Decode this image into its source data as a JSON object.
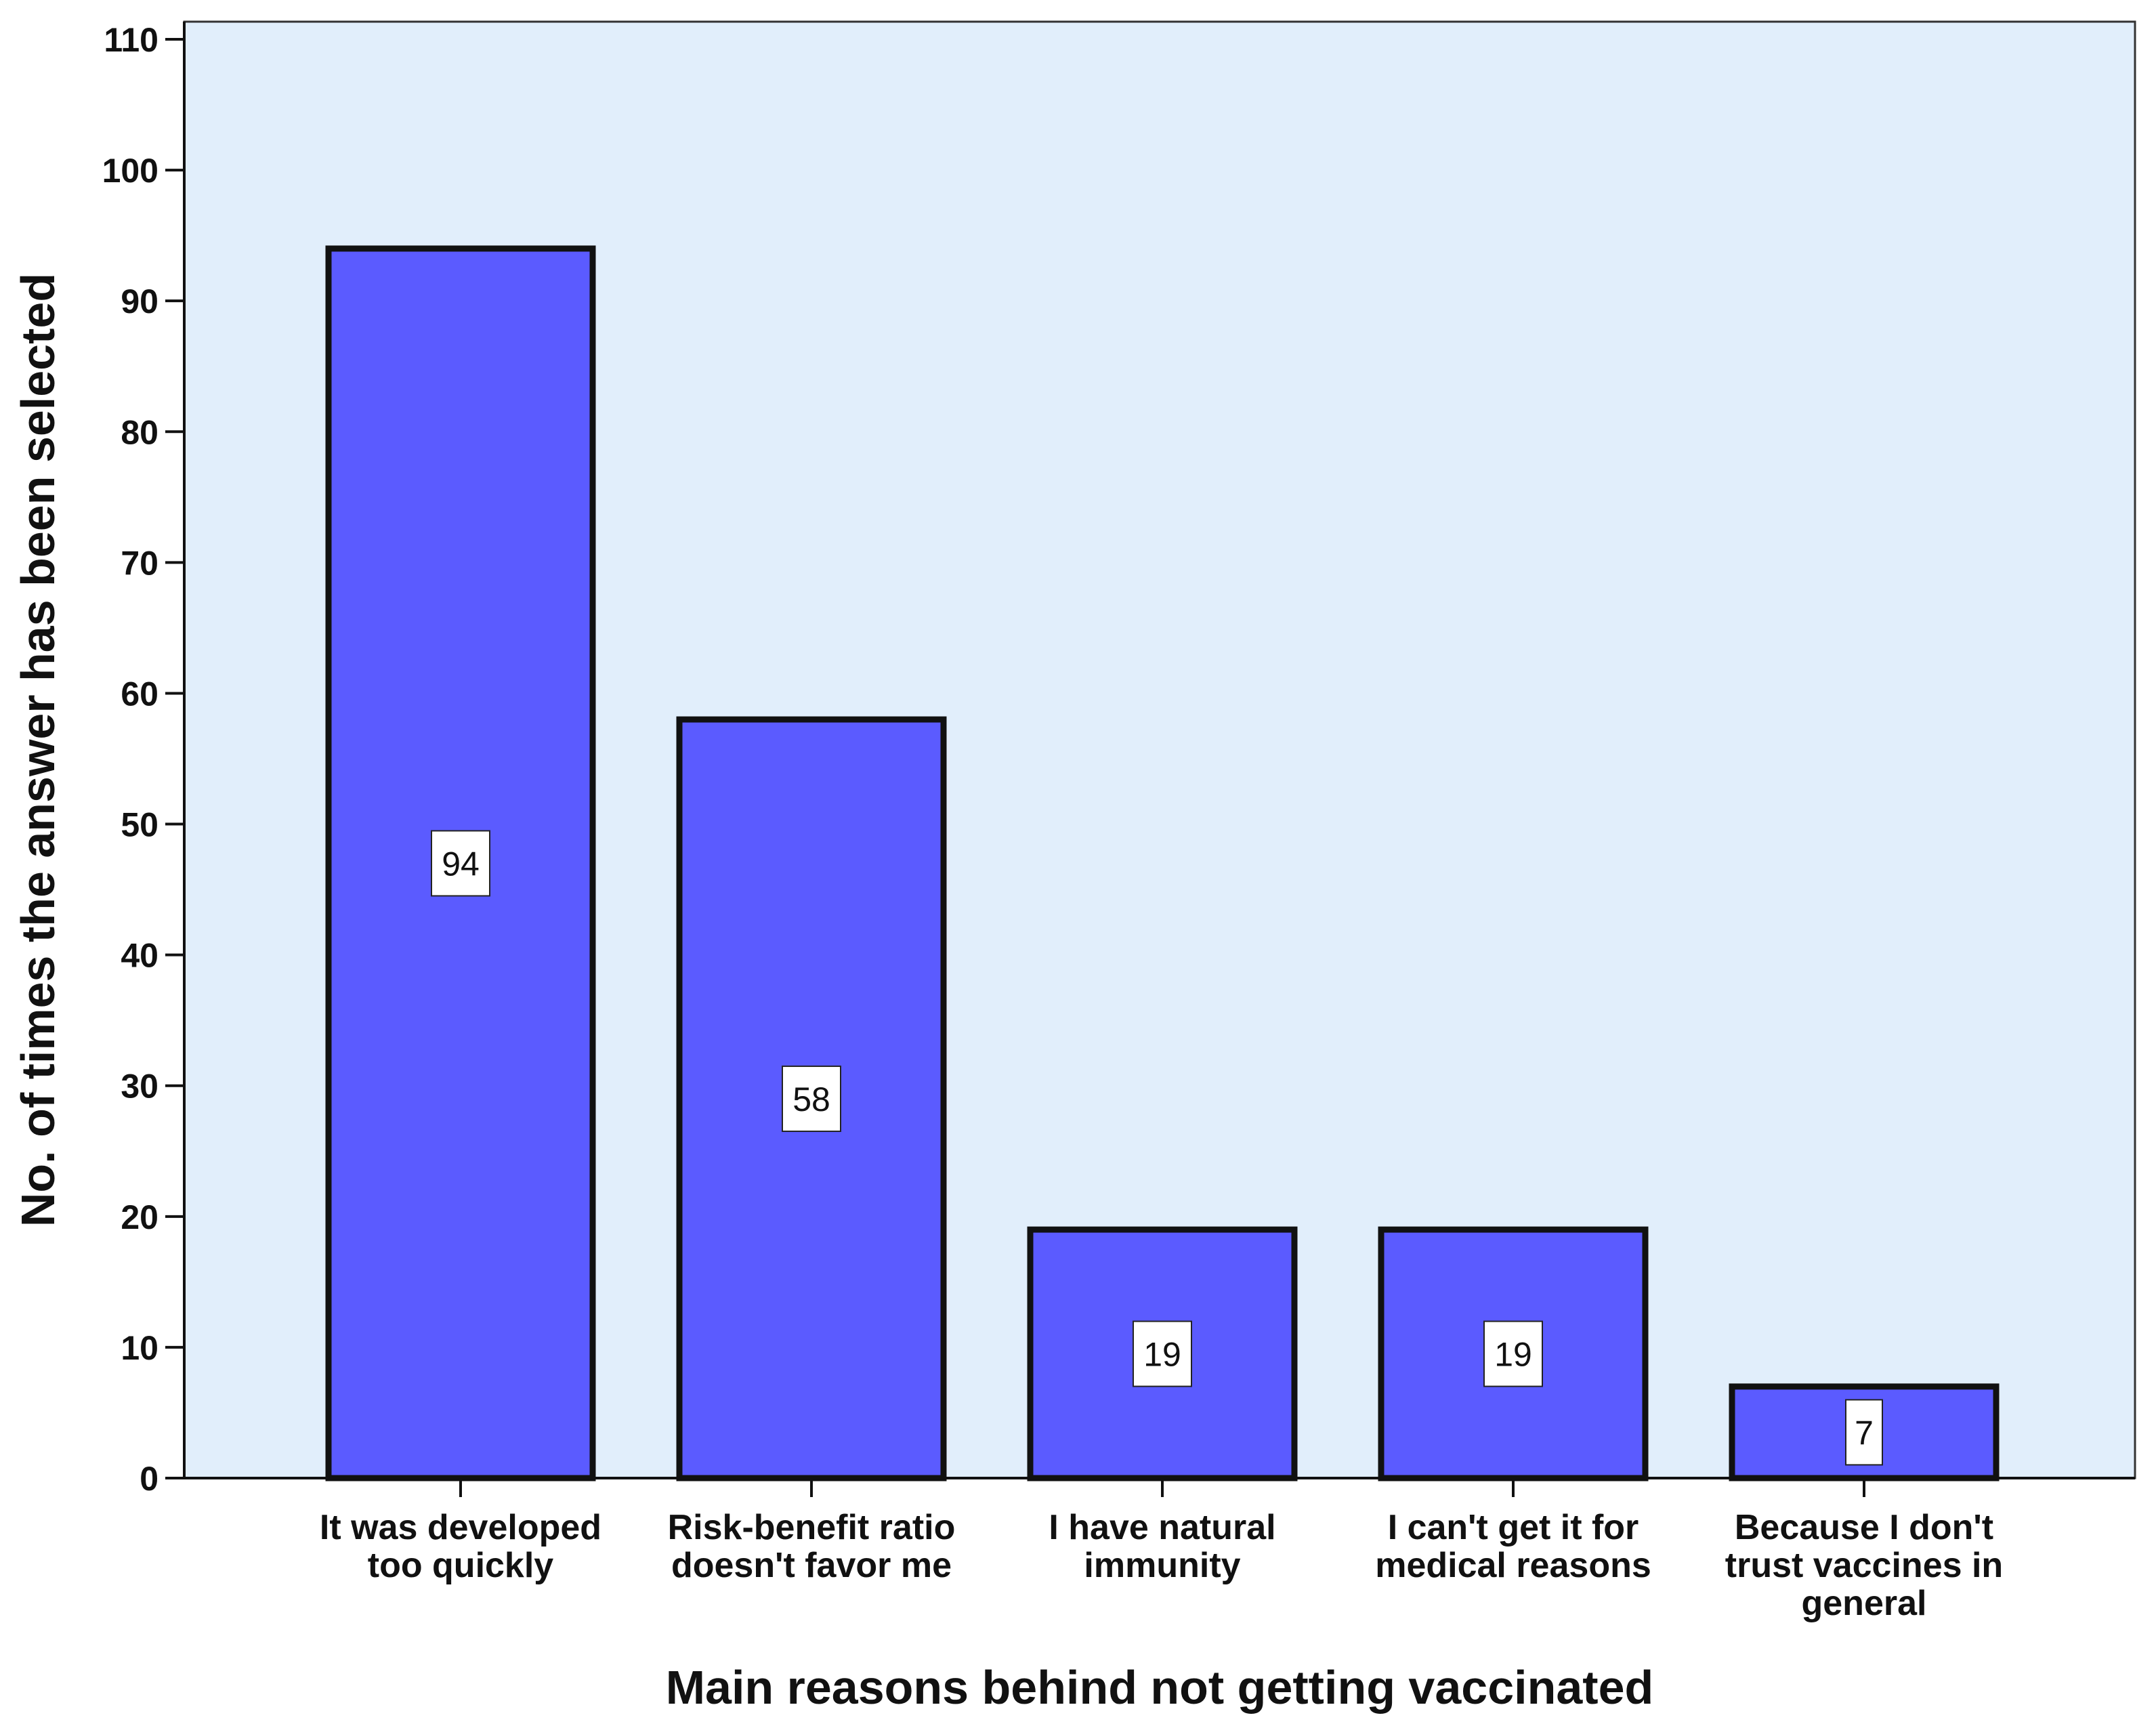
{
  "chart_data": {
    "type": "bar",
    "title": "",
    "xlabel": "Main reasons behind not getting vaccinated",
    "ylabel": "No. of times the answer has been selected",
    "categories": [
      "It was developed too quickly",
      "Risk-benefit ratio doesn't favor me",
      "I have natural immunity",
      "I can't get it for medical reasons",
      "Because I don't trust vaccines in general"
    ],
    "category_label_lines": [
      [
        "It was developed",
        "too quickly"
      ],
      [
        "Risk-benefit ratio",
        "doesn't favor me"
      ],
      [
        "I have natural",
        "immunity"
      ],
      [
        "I can't get it for",
        "medical reasons"
      ],
      [
        "Because I don't",
        "trust vaccines in",
        "general"
      ]
    ],
    "values": [
      94,
      58,
      19,
      19,
      7
    ],
    "data_labels": [
      "94",
      "58",
      "19",
      "19",
      "7"
    ],
    "ylim": [
      0,
      110
    ],
    "yticks": [
      0,
      10,
      20,
      30,
      40,
      50,
      60,
      70,
      80,
      90,
      100,
      110
    ],
    "grid": false,
    "legend": "none",
    "colors": {
      "bar_fill": "#5B5BFF",
      "bar_stroke": "#111111",
      "plot_background": "#E1EEFB",
      "plot_border": "#333333",
      "label_box_fill": "#FFFFFF"
    }
  }
}
